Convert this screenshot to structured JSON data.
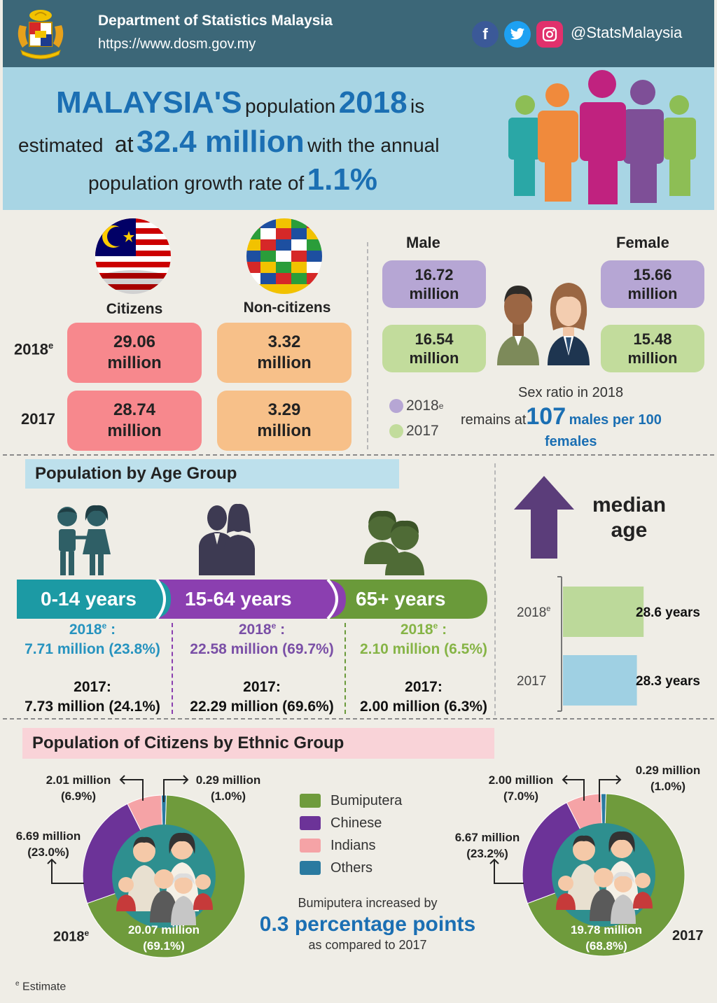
{
  "header": {
    "org_name": "Department of Statistics Malaysia",
    "url": "https://www.dosm.gov.my",
    "social_handle": "@StatsMalaysia",
    "social_icons": [
      "facebook-icon",
      "twitter-icon",
      "instagram-icon"
    ],
    "bg_color": "#3c6778"
  },
  "banner": {
    "w1": "MALAYSIA'S",
    "w2": "population",
    "w3": "2018",
    "w4": "is",
    "w5": "estimated",
    "w6": "at",
    "w7": "32.4 million",
    "w8": "with the annual",
    "w9": "population growth rate of",
    "w10": "1.1%"
  },
  "citizenship": {
    "citizens_label": "Citizens",
    "noncitizens_label": "Non-citizens",
    "years": [
      {
        "year": "2018",
        "sup": "e",
        "citizens": "29.06",
        "noncitizens": "3.32",
        "unit": "million"
      },
      {
        "year": "2017",
        "sup": "",
        "citizens": "28.74",
        "noncitizens": "3.29",
        "unit": "million"
      }
    ]
  },
  "gender": {
    "male_label": "Male",
    "female_label": "Female",
    "male_2018": "16.72",
    "male_2017": "16.54",
    "female_2018": "15.66",
    "female_2017": "15.48",
    "unit": "million",
    "legend_2018": "2018",
    "legend_2018_sup": "e",
    "legend_2017": "2017",
    "sex_ratio_title": "Sex ratio in 2018",
    "sex_ratio_pre": "remains at",
    "sex_ratio_value": "107",
    "sex_ratio_post": "males per 100",
    "sex_ratio_post2": "females"
  },
  "age_group": {
    "title": "Population by Age Group",
    "groups": [
      {
        "label": "0-14 years",
        "y2018_head": "2018",
        "y2018_val": "7.71 million (23.8%)",
        "y2017_head": "2017:",
        "y2017_val": "7.73 million (24.1%)",
        "color": "#1c9aa4"
      },
      {
        "label": "15-64 years",
        "y2018_head": "2018",
        "y2018_val": "22.58 million (69.7%)",
        "y2017_head": "2017:",
        "y2017_val": "22.29 million (69.6%)",
        "color": "#8b3fb0"
      },
      {
        "label": "65+ years",
        "y2018_head": "2018",
        "y2018_val": "2.10 million (6.5%)",
        "y2017_head": "2017:",
        "y2017_val": "2.00 million (6.3%)",
        "color": "#6a9a3a"
      }
    ],
    "sup": "e",
    "colon": " :"
  },
  "median_age": {
    "title_1": "median",
    "title_2": "age"
  },
  "ethnic": {
    "title": "Population of Citizens by Ethnic Group",
    "label_2018": "2018",
    "label_2018_sup": "e",
    "label_2017": "2017",
    "legend": [
      "Bumiputera",
      "Chinese",
      "Indians",
      "Others"
    ],
    "note_1": "Bumiputera increased by",
    "note_value": "0.3 percentage points",
    "note_2": "as compared to 2017",
    "lbl_2018": {
      "bumi": [
        "20.07 million",
        "(69.1%)"
      ],
      "chinese": [
        "6.69 million",
        "(23.0%)"
      ],
      "indians": [
        "2.01 million",
        "(6.9%)"
      ],
      "others": [
        "0.29 million",
        "(1.0%)"
      ]
    },
    "lbl_2017": {
      "bumi": [
        "19.78 million",
        "(68.8%)"
      ],
      "chinese": [
        "6.67 million",
        "(23.2%)"
      ],
      "indians": [
        "2.00 million",
        "(7.0%)"
      ],
      "others": [
        "0.29 million",
        "(1.0%)"
      ]
    }
  },
  "footnote": {
    "mark": "e",
    "text": "Estimate"
  },
  "chart_data": [
    {
      "type": "bar",
      "categories": [
        "2018",
        "2017"
      ],
      "values": [
        28.6,
        28.3
      ],
      "title": "median age",
      "value_labels": [
        "28.6 years",
        "28.3 years"
      ],
      "colors": [
        "#bcd99a",
        "#9fd0e3"
      ]
    },
    {
      "type": "pie",
      "title": "2018",
      "categories": [
        "Bumiputera",
        "Chinese",
        "Indians",
        "Others"
      ],
      "values": [
        69.1,
        23.0,
        6.9,
        1.0
      ],
      "colors": [
        "#6f9b3c",
        "#6c3398",
        "#f5a3a6",
        "#2a7aa0"
      ]
    },
    {
      "type": "pie",
      "title": "2017",
      "categories": [
        "Bumiputera",
        "Chinese",
        "Indians",
        "Others"
      ],
      "values": [
        68.8,
        23.2,
        7.0,
        1.0
      ],
      "colors": [
        "#6f9b3c",
        "#6c3398",
        "#f5a3a6",
        "#2a7aa0"
      ]
    }
  ]
}
